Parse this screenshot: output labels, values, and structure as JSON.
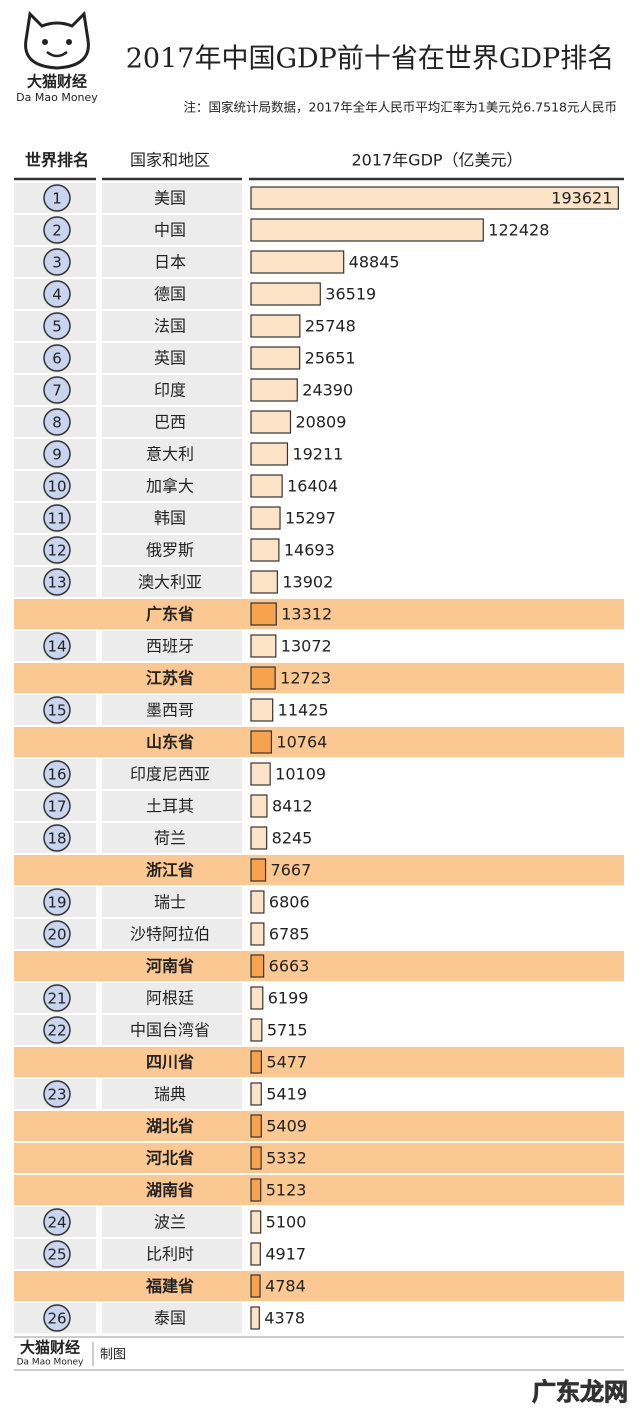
{
  "logo": {
    "name": "大猫财经",
    "name_en": "Da Mao Money"
  },
  "chart_data": {
    "type": "bar",
    "orientation": "horizontal",
    "title": "2017年中国GDP前十省在世界GDP排名",
    "subtitle": "注：国家统计局数据，2017年全年人民币平均汇率为1美元兑6.7518元人民币",
    "columns": [
      "世界排名",
      "国家和地区",
      "2017年GDP（亿美元）"
    ],
    "ranks": [
      1,
      2,
      3,
      4,
      5,
      6,
      7,
      8,
      9,
      10,
      11,
      12,
      13,
      null,
      14,
      null,
      15,
      null,
      16,
      17,
      18,
      null,
      19,
      20,
      null,
      21,
      22,
      null,
      23,
      null,
      null,
      null,
      24,
      25,
      null,
      26
    ],
    "categories": [
      "美国",
      "中国",
      "日本",
      "德国",
      "法国",
      "英国",
      "印度",
      "巴西",
      "意大利",
      "加拿大",
      "韩国",
      "俄罗斯",
      "澳大利亚",
      "广东省",
      "西班牙",
      "江苏省",
      "墨西哥",
      "山东省",
      "印度尼西亚",
      "土耳其",
      "荷兰",
      "浙江省",
      "瑞士",
      "沙特阿拉伯",
      "河南省",
      "阿根廷",
      "中国台湾省",
      "四川省",
      "瑞典",
      "湖北省",
      "河北省",
      "湖南省",
      "波兰",
      "比利时",
      "福建省",
      "泰国"
    ],
    "values": [
      193621,
      122428,
      48845,
      36519,
      25748,
      25651,
      24390,
      20809,
      19211,
      16404,
      15297,
      14693,
      13902,
      13312,
      13072,
      12723,
      11425,
      10764,
      10109,
      8412,
      8245,
      7667,
      6806,
      6785,
      6663,
      6199,
      5715,
      5477,
      5419,
      5409,
      5332,
      5123,
      5100,
      4917,
      4784,
      4378
    ],
    "xlim": [
      0,
      195000
    ],
    "colors": {
      "country_bar": "#fde3c6",
      "province_bar": "#f6a24e",
      "province_row": "#fbc892",
      "rank_circle": "#c9d5ee"
    }
  },
  "footer": {
    "name": "大猫财经",
    "name_en": "Da Mao Money",
    "note": "制图"
  },
  "watermark": "广东龙网"
}
